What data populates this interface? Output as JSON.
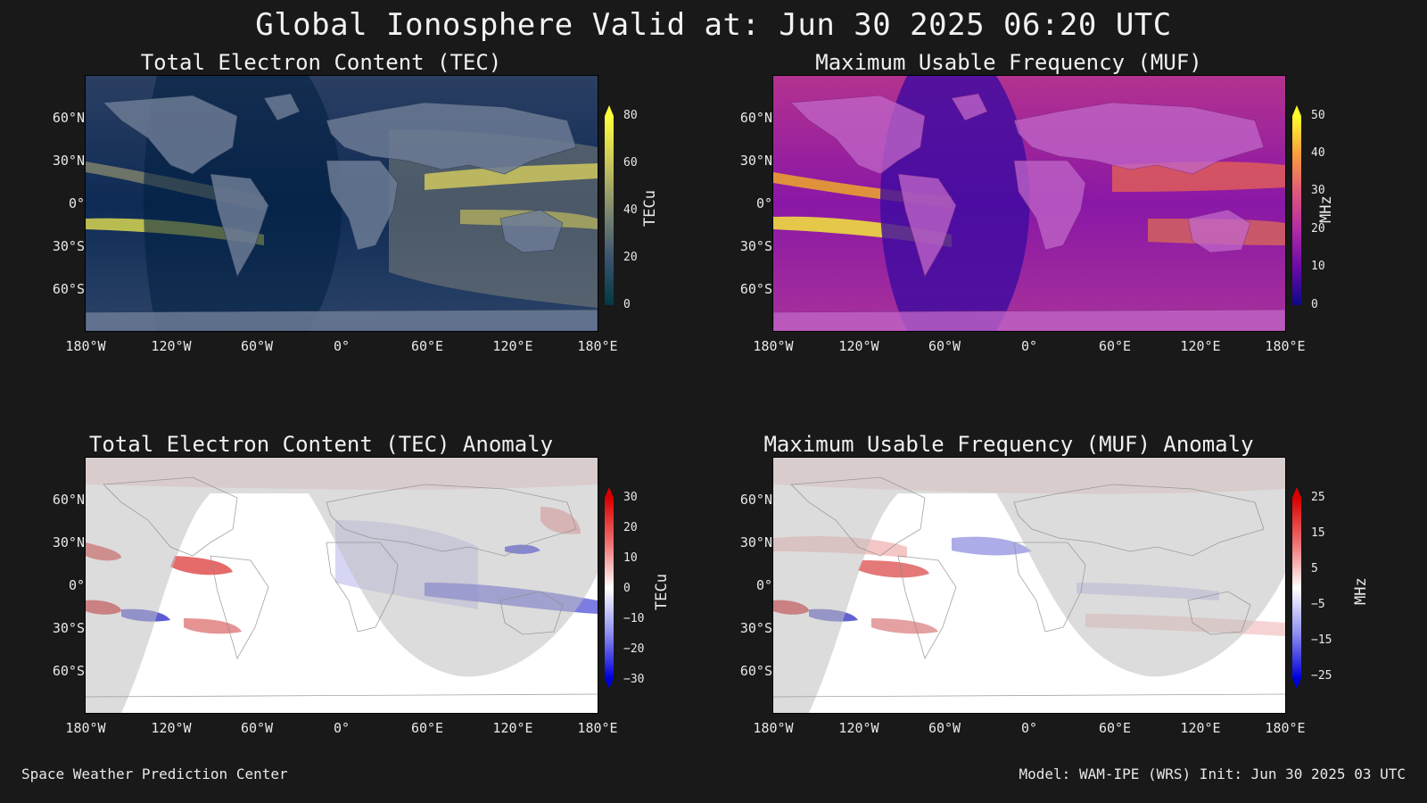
{
  "title": "Global Ionosphere Valid at: Jun 30 2025 06:20 UTC",
  "lat_labels": [
    "60°N",
    "30°N",
    "0°",
    "30°S",
    "60°S"
  ],
  "lon_labels": [
    "180°W",
    "120°W",
    "60°W",
    "0°",
    "60°E",
    "120°E",
    "180°E"
  ],
  "panels": [
    {
      "id": "tec",
      "title": "Total Electron Content (TEC)",
      "colorbar": {
        "unit": "TECu",
        "ticks": [
          "80",
          "60",
          "40",
          "20",
          "0"
        ],
        "colors": [
          "#ffff3a",
          "#c9c45a",
          "#7e8a70",
          "#3b5470",
          "#003a44"
        ]
      }
    },
    {
      "id": "muf",
      "title": "Maximum Usable Frequency (MUF)",
      "colorbar": {
        "unit": "MHz",
        "ticks": [
          "50",
          "40",
          "30",
          "20",
          "10",
          "0"
        ],
        "colors": [
          "#fcff2a",
          "#fb9e3c",
          "#e2587a",
          "#b42aa6",
          "#6a0aa8",
          "#0d0887"
        ]
      }
    },
    {
      "id": "tec-anom",
      "title": "Total Electron Content (TEC) Anomaly",
      "colorbar": {
        "unit": "TECu",
        "ticks": [
          "30",
          "20",
          "10",
          "0",
          "−10",
          "−20",
          "−30"
        ],
        "colors": [
          "#d90000",
          "#f07070",
          "#ffffff",
          "#8f8ff2",
          "#0000d9"
        ]
      }
    },
    {
      "id": "muf-anom",
      "title": "Maximum Usable Frequency (MUF) Anomaly",
      "colorbar": {
        "unit": "MHz",
        "ticks": [
          "25",
          "15",
          "5",
          "−5",
          "−15",
          "−25"
        ],
        "colors": [
          "#d90000",
          "#f07070",
          "#ffffff",
          "#8f8ff2",
          "#0000d9"
        ]
      }
    }
  ],
  "footer": {
    "left": "Space Weather Prediction Center",
    "right": "Model: WAM-IPE (WRS) Init: Jun 30 2025 03 UTC"
  }
}
